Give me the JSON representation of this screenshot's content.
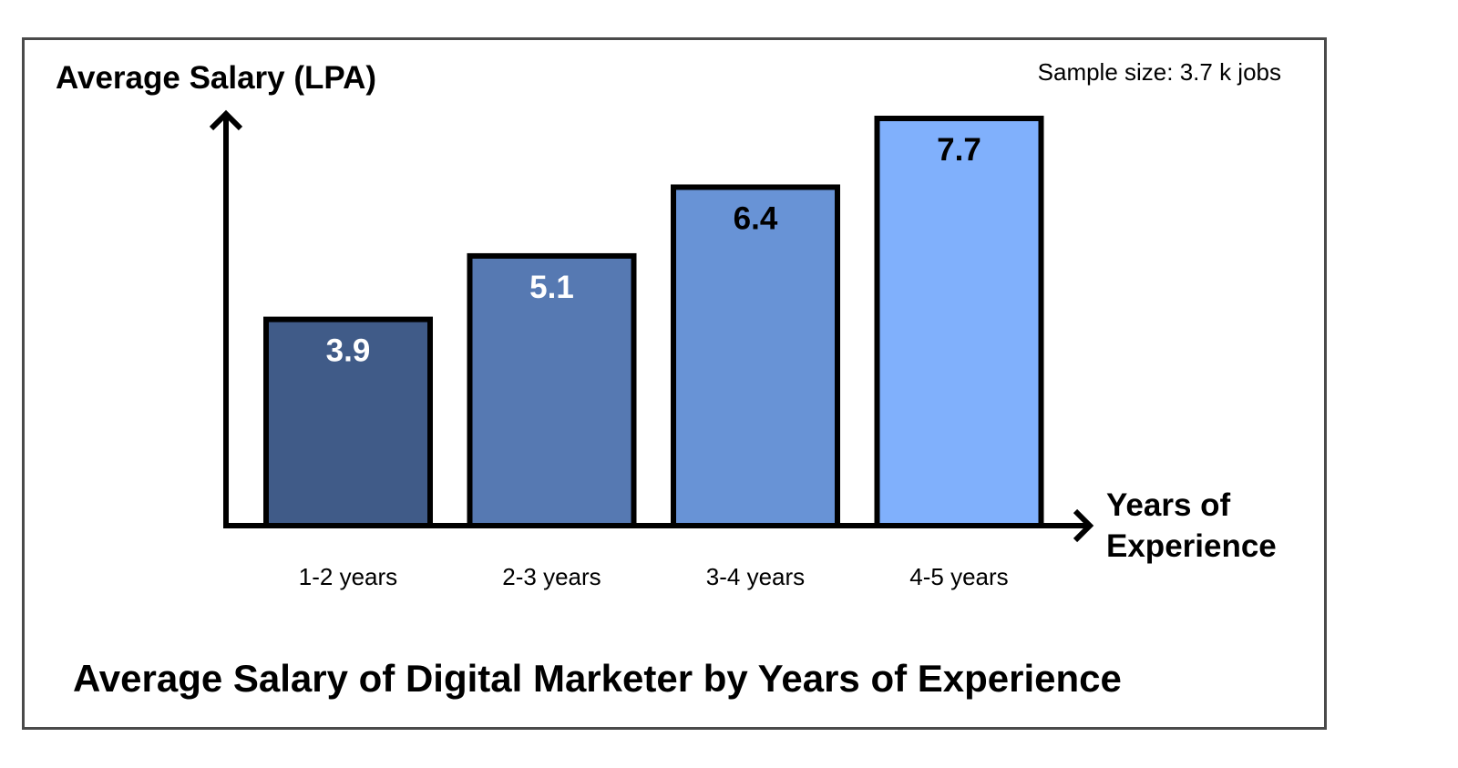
{
  "chart_data": {
    "type": "bar",
    "title": "Average Salary of Digital Marketer by Years of Experience",
    "ylabel": "Average Salary (LPA)",
    "xlabel_lines": [
      "Years of",
      "Experience"
    ],
    "annotation": "Sample size: 3.7 k jobs",
    "categories": [
      "1-2 years",
      "2-3 years",
      "3-4 years",
      "4-5 years"
    ],
    "values": [
      3.9,
      5.1,
      6.4,
      7.7
    ],
    "ylim": [
      0,
      7.7
    ],
    "grid": false,
    "bar_colors": [
      "#405b88",
      "#5679b2",
      "#6893d6",
      "#80b0fc"
    ],
    "label_colors": [
      "#ffffff",
      "#ffffff",
      "#000000",
      "#000000"
    ]
  }
}
